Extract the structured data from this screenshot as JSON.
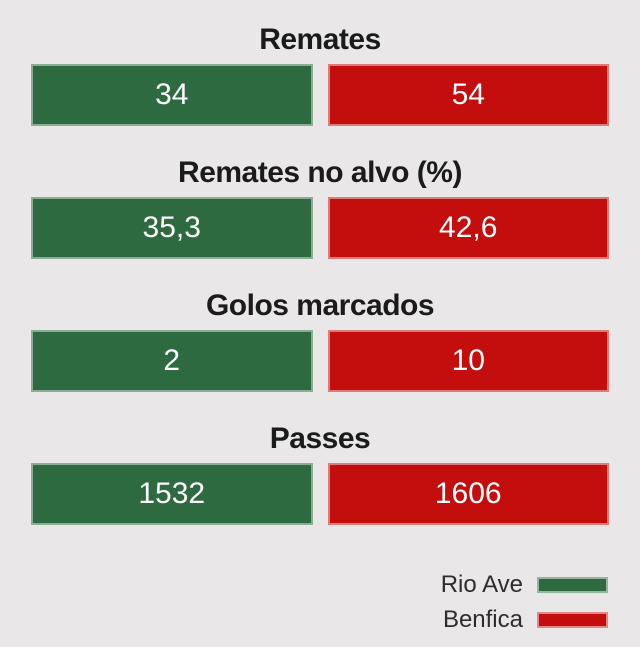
{
  "page": {
    "background_color": "#e9e7e8"
  },
  "teams": {
    "home": {
      "name": "Rio Ave",
      "color": "#2d6a40"
    },
    "away": {
      "name": "Benfica",
      "color": "#c40d0d"
    }
  },
  "chart_data": {
    "type": "bar",
    "orientation": "horizontal",
    "categories": [
      "Remates",
      "Remates no alvo (%)",
      "Golos marcados",
      "Passes"
    ],
    "series": [
      {
        "name": "Rio Ave",
        "color": "#2d6a40",
        "values": [
          34,
          35.3,
          2,
          1532
        ]
      },
      {
        "name": "Benfica",
        "color": "#c40d0d",
        "values": [
          54,
          42.6,
          10,
          1606
        ]
      }
    ],
    "value_labels": [
      [
        "34",
        "54"
      ],
      [
        "35,3",
        "42,6"
      ],
      [
        "2",
        "10"
      ],
      [
        "1532",
        "1606"
      ]
    ],
    "title": "",
    "xlabel": "",
    "ylabel": "",
    "grid": false,
    "legend_position": "bottom-right",
    "equal_width_bars": true,
    "value_text_color": "#ffffff",
    "category_title_color": "#1b1b1b"
  },
  "sections": [
    {
      "title": "Remates",
      "home_value": "34",
      "away_value": "54"
    },
    {
      "title": "Remates no alvo (%)",
      "home_value": "35,3",
      "away_value": "42,6"
    },
    {
      "title": "Golos marcados",
      "home_value": "2",
      "away_value": "10"
    },
    {
      "title": "Passes",
      "home_value": "1532",
      "away_value": "1606"
    }
  ],
  "legend": {
    "items": [
      {
        "label": "Rio Ave",
        "color": "#2d6a40"
      },
      {
        "label": "Benfica",
        "color": "#c40d0d"
      }
    ]
  }
}
